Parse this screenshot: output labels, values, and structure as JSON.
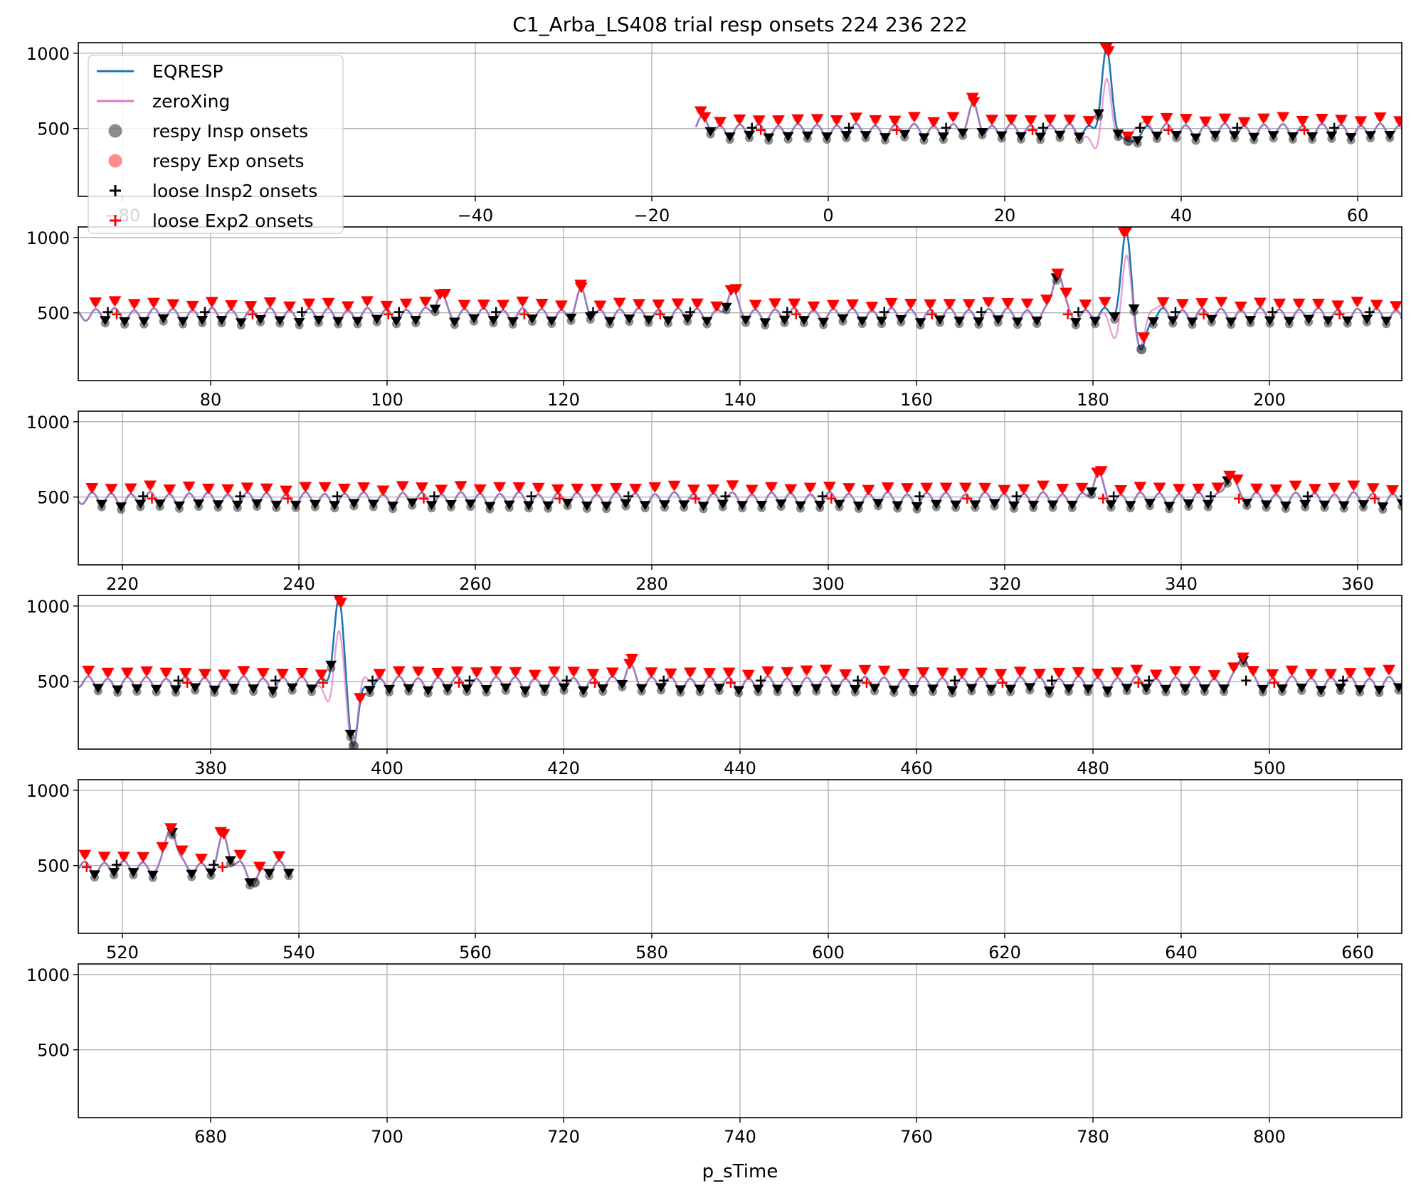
{
  "title": "C1_Arba_LS408 trial resp onsets 224 236 222",
  "colors": {
    "eqresp": "#1f77b4",
    "zeroxing": "#e377c2",
    "insp": "#000000",
    "exp": "#ff0000",
    "grid": "#b0b0b0"
  },
  "legend": {
    "placement": "upper-left of first panel",
    "entries": [
      {
        "label": "EQRESP",
        "kind": "line",
        "color": "#1f77b4"
      },
      {
        "label": "zeroXing",
        "kind": "line",
        "color": "#e377c2"
      },
      {
        "label": "respy Insp onsets",
        "kind": "dot",
        "color": "#000000"
      },
      {
        "label": "respy Exp onsets",
        "kind": "dot",
        "color": "#ff0000"
      },
      {
        "label": "loose Insp2 onsets",
        "kind": "plus",
        "color": "#000000"
      },
      {
        "label": "loose Exp2 onsets",
        "kind": "plus",
        "color": "#ff0000"
      }
    ]
  },
  "chart_data": {
    "type": "line",
    "title": "C1_Arba_LS408 trial resp onsets 224 236 222",
    "xlabel": "p_sTime",
    "ylabel": "",
    "grid": true,
    "y_ticks": [
      500,
      1000
    ],
    "ylim": [
      50,
      1070
    ],
    "panels": [
      {
        "xlim": [
          -85,
          65
        ],
        "x_ticks": [
          -80,
          -40,
          -20,
          0,
          20,
          40,
          60
        ],
        "x_tick_labels": [
          "−80",
          "−40",
          "−20",
          "0",
          "20",
          "40",
          "60"
        ]
      },
      {
        "xlim": [
          65,
          215
        ],
        "x_ticks": [
          80,
          100,
          120,
          140,
          160,
          180,
          200
        ]
      },
      {
        "xlim": [
          215,
          365
        ],
        "x_ticks": [
          220,
          240,
          260,
          280,
          300,
          320,
          340,
          360
        ]
      },
      {
        "xlim": [
          365,
          515
        ],
        "x_ticks": [
          380,
          400,
          420,
          440,
          460,
          480,
          500
        ]
      },
      {
        "xlim": [
          515,
          665
        ],
        "x_ticks": [
          520,
          540,
          560,
          580,
          600,
          620,
          640,
          660
        ]
      },
      {
        "xlim": [
          665,
          815
        ],
        "x_ticks": [
          680,
          700,
          720,
          740,
          760,
          780,
          800
        ]
      }
    ],
    "signal": {
      "x_range": [
        -15,
        538.5
      ],
      "baseline": 490,
      "amplitude": 35
    },
    "spikes": [
      {
        "x": -14,
        "value": 555
      },
      {
        "x": 16.5,
        "value": 640
      },
      {
        "x": 31.5,
        "value": 1000
      },
      {
        "x": 34,
        "value": 380
      },
      {
        "x": 106,
        "value": 620
      },
      {
        "x": 122,
        "value": 620
      },
      {
        "x": 139,
        "value": 640
      },
      {
        "x": 176,
        "value": 780
      },
      {
        "x": 183.8,
        "value": 1020
      },
      {
        "x": 185.5,
        "value": 230
      },
      {
        "x": 330.5,
        "value": 640
      },
      {
        "x": 345.5,
        "value": 670
      },
      {
        "x": 394.5,
        "value": 1020
      },
      {
        "x": 396.2,
        "value": 80
      },
      {
        "x": 427.5,
        "value": 590
      },
      {
        "x": 497,
        "value": 680
      },
      {
        "x": 525.5,
        "value": 770
      },
      {
        "x": 531.5,
        "value": 680
      },
      {
        "x": 535,
        "value": 395
      }
    ],
    "breath_period": 2.2,
    "zeroxing_deviations": [
      {
        "x": 31.5,
        "value": 810
      },
      {
        "x": 30,
        "value": 400
      },
      {
        "x": 35,
        "value": 520
      },
      {
        "x": 183.5,
        "value": 810
      },
      {
        "x": 182.5,
        "value": 380
      },
      {
        "x": 186.5,
        "value": 520
      },
      {
        "x": 394.7,
        "value": 820
      },
      {
        "x": 393.5,
        "value": 420
      },
      {
        "x": 397.5,
        "value": 540
      }
    ]
  }
}
